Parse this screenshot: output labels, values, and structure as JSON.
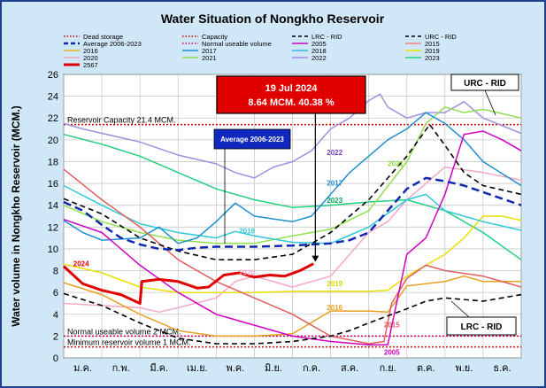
{
  "chart_data": {
    "type": "line",
    "title": "Water Situation of Nongkho Reservoir",
    "ylabel": "Water volume in Nongkho Reservoir (MCM.)",
    "xlabel": "",
    "ylim": [
      0,
      26
    ],
    "y_ticks": [
      0,
      2,
      4,
      6,
      8,
      10,
      12,
      14,
      16,
      18,
      20,
      22,
      24,
      26
    ],
    "categories": [
      "ม.ค.",
      "ก.พ.",
      "มี.ค.",
      "เม.ย.",
      "พ.ค.",
      "มิ.ย.",
      "ก.ค.",
      "ส.ค.",
      "ก.ย.",
      "ต.ค.",
      "พ.ย.",
      "ธ.ค."
    ],
    "grid": true,
    "legend_placement": "top",
    "reference_lines": [
      {
        "label": "Reservoir Capacity 21.4 MCM.",
        "value": 21.4,
        "color": "#c00000"
      },
      {
        "label": "Normal useable volume 2 MCM.",
        "value": 2,
        "color": "#c00060"
      },
      {
        "label": "Minimum reservoir volume 1 MCM.",
        "value": 1,
        "color": "#c00000"
      }
    ],
    "callout": {
      "line1": "19 Jul 2024",
      "line2": "8.64 MCM. 40.38 %",
      "month": 6.6,
      "value": 8.64
    },
    "avg_label": "Average 2006-2023",
    "urc_labels": [
      "URC - RID",
      "LRC - RID"
    ],
    "year_labels": [
      {
        "name": "2024",
        "m": 0.25,
        "v": 8.4,
        "color": "#e00000"
      },
      {
        "name": "2022",
        "m": 6.9,
        "v": 18.6,
        "color": "#7a3fbf"
      },
      {
        "name": "2021",
        "m": 8.5,
        "v": 17.6,
        "color": "#8fd640"
      },
      {
        "name": "2017",
        "m": 6.9,
        "v": 15.8,
        "color": "#1f8fd0"
      },
      {
        "name": "2023",
        "m": 6.9,
        "v": 14.2,
        "color": "#00a060"
      },
      {
        "name": "2018",
        "m": 4.6,
        "v": 11.4,
        "color": "#30c8d8"
      },
      {
        "name": "2020",
        "m": 4.6,
        "v": 7.6,
        "color": "#f4a8c8"
      },
      {
        "name": "2019",
        "m": 6.9,
        "v": 6.6,
        "color": "#d8d800"
      },
      {
        "name": "2016",
        "m": 6.9,
        "v": 4.4,
        "color": "#e8a020"
      },
      {
        "name": "2015",
        "m": 8.4,
        "v": 2.8,
        "color": "#e06060"
      },
      {
        "name": "2005",
        "m": 8.4,
        "v": 0.3,
        "color": "#d000c0"
      }
    ],
    "legend": [
      {
        "name": "Dead storage",
        "color": "#c00000",
        "style": "dot"
      },
      {
        "name": "Capacity",
        "color": "#c00000",
        "style": "dot"
      },
      {
        "name": "LRC - RID",
        "color": "#000000",
        "style": "dash"
      },
      {
        "name": "URC - RID",
        "color": "#000000",
        "style": "dash"
      },
      {
        "name": "Average 2006-2023",
        "color": "#1028b0",
        "style": "dashbold"
      },
      {
        "name": "Normal useable volume",
        "color": "#c00060",
        "style": "dot"
      },
      {
        "name": "2005",
        "color": "#d000c0",
        "style": "solid"
      },
      {
        "name": "2015",
        "color": "#f08080",
        "style": "solid"
      },
      {
        "name": "2016",
        "color": "#f0b020",
        "style": "solid"
      },
      {
        "name": "2017",
        "color": "#1f8fd0",
        "style": "solid"
      },
      {
        "name": "2018",
        "color": "#30b8d8",
        "style": "solid"
      },
      {
        "name": "2019",
        "color": "#e8e000",
        "style": "solid"
      },
      {
        "name": "2020",
        "color": "#f4a8c8",
        "style": "solid"
      },
      {
        "name": "2021",
        "color": "#90e050",
        "style": "solid"
      },
      {
        "name": "2022",
        "color": "#a090e0",
        "style": "solid"
      },
      {
        "name": "2023",
        "color": "#20d080",
        "style": "solid"
      },
      {
        "name": "2567",
        "color": "#e00000",
        "style": "solidbold"
      }
    ],
    "series": [
      {
        "name": "2567",
        "color": "#e00000",
        "width": 3,
        "points": [
          [
            0,
            8.4
          ],
          [
            0.5,
            6.8
          ],
          [
            1,
            6.2
          ],
          [
            1.5,
            5.8
          ],
          [
            2,
            5.0
          ],
          [
            2.05,
            7.0
          ],
          [
            2.5,
            7.2
          ],
          [
            3,
            7.0
          ],
          [
            3.5,
            6.4
          ],
          [
            3.8,
            6.5
          ],
          [
            4.2,
            7.6
          ],
          [
            4.6,
            7.8
          ],
          [
            5,
            7.4
          ],
          [
            5.4,
            7.6
          ],
          [
            5.8,
            7.5
          ],
          [
            6.2,
            8.0
          ],
          [
            6.55,
            8.64
          ]
        ]
      },
      {
        "name": "Average 2006-2023",
        "color": "#1028b0",
        "width": 2.5,
        "dash": "9,5",
        "points": [
          [
            0,
            14.3
          ],
          [
            0.5,
            13.5
          ],
          [
            1,
            12.2
          ],
          [
            1.5,
            11.0
          ],
          [
            2,
            10.4
          ],
          [
            2.5,
            10.0
          ],
          [
            3,
            9.9
          ],
          [
            3.5,
            10.1
          ],
          [
            4,
            10.2
          ],
          [
            5,
            10.2
          ],
          [
            6,
            10.3
          ],
          [
            7,
            10.5
          ],
          [
            7.5,
            10.8
          ],
          [
            8,
            11.5
          ],
          [
            8.5,
            13.5
          ],
          [
            9,
            15.5
          ],
          [
            9.5,
            16.5
          ],
          [
            10,
            16.2
          ],
          [
            10.5,
            15.8
          ],
          [
            11,
            15.2
          ],
          [
            11.5,
            14.6
          ],
          [
            12,
            14.0
          ]
        ]
      },
      {
        "name": "URC - RID",
        "color": "#000000",
        "width": 1.6,
        "dash": "6,4",
        "points": [
          [
            0,
            14.6
          ],
          [
            1,
            13.2
          ],
          [
            2,
            11.0
          ],
          [
            3,
            9.8
          ],
          [
            4,
            9.0
          ],
          [
            5,
            9.0
          ],
          [
            6,
            9.5
          ],
          [
            7,
            11.5
          ],
          [
            8,
            14.5
          ],
          [
            9,
            18.5
          ],
          [
            9.6,
            21.4
          ],
          [
            10,
            19.5
          ],
          [
            10.5,
            17.0
          ],
          [
            11,
            15.8
          ],
          [
            12,
            15.0
          ]
        ]
      },
      {
        "name": "LRC - RID",
        "color": "#000000",
        "width": 1.6,
        "dash": "6,4",
        "points": [
          [
            0,
            5.9
          ],
          [
            1,
            4.8
          ],
          [
            2,
            3.2
          ],
          [
            3,
            1.8
          ],
          [
            4,
            1.3
          ],
          [
            5,
            1.3
          ],
          [
            6,
            1.5
          ],
          [
            7,
            2.0
          ],
          [
            7.5,
            2.5
          ],
          [
            8,
            3.2
          ],
          [
            9,
            4.5
          ],
          [
            9.5,
            5.2
          ],
          [
            10,
            5.5
          ],
          [
            11,
            5.2
          ],
          [
            12,
            5.8
          ]
        ]
      },
      {
        "name": "2005",
        "color": "#d000c0",
        "width": 1.5,
        "points": [
          [
            0,
            12.7
          ],
          [
            1,
            11.5
          ],
          [
            2,
            8.5
          ],
          [
            3,
            6.0
          ],
          [
            4,
            4.0
          ],
          [
            5,
            3.0
          ],
          [
            6,
            2.0
          ],
          [
            7,
            1.5
          ],
          [
            8,
            1.2
          ],
          [
            8.5,
            1.2
          ],
          [
            8.7,
            4.5
          ],
          [
            9,
            9.5
          ],
          [
            9.5,
            11.0
          ],
          [
            10,
            15.0
          ],
          [
            10.5,
            20.5
          ],
          [
            11,
            20.8
          ],
          [
            11.5,
            20.0
          ],
          [
            12,
            19.0
          ]
        ]
      },
      {
        "name": "2015",
        "color": "#e06060",
        "width": 1.5,
        "points": [
          [
            0,
            17.3
          ],
          [
            1,
            14.5
          ],
          [
            2,
            12.0
          ],
          [
            3,
            9.0
          ],
          [
            4,
            7.0
          ],
          [
            5,
            5.5
          ],
          [
            6,
            4.0
          ],
          [
            7,
            2.0
          ],
          [
            8,
            1.3
          ],
          [
            8.4,
            1.5
          ],
          [
            8.6,
            5.0
          ],
          [
            9,
            7.3
          ],
          [
            9.5,
            8.5
          ],
          [
            10,
            8.0
          ],
          [
            11,
            7.5
          ],
          [
            12,
            6.5
          ]
        ]
      },
      {
        "name": "2016",
        "color": "#e8a020",
        "width": 1.5,
        "points": [
          [
            0,
            6.9
          ],
          [
            1,
            5.8
          ],
          [
            2,
            4.0
          ],
          [
            3,
            2.5
          ],
          [
            4,
            2.0
          ],
          [
            5,
            2.0
          ],
          [
            6,
            2.2
          ],
          [
            7,
            4.3
          ],
          [
            8,
            4.3
          ],
          [
            8.5,
            4.2
          ],
          [
            9,
            6.6
          ],
          [
            10,
            7.0
          ],
          [
            10.5,
            7.5
          ],
          [
            11,
            7.0
          ],
          [
            12,
            7.0
          ]
        ]
      },
      {
        "name": "2017",
        "color": "#1f8fd0",
        "width": 1.5,
        "points": [
          [
            0,
            12.6
          ],
          [
            0.5,
            11.5
          ],
          [
            1,
            10.8
          ],
          [
            2,
            11.0
          ],
          [
            2.5,
            12.0
          ],
          [
            3,
            10.5
          ],
          [
            3.5,
            11.0
          ],
          [
            4,
            12.5
          ],
          [
            4.5,
            14.2
          ],
          [
            5,
            13.0
          ],
          [
            6,
            12.5
          ],
          [
            6.5,
            13.0
          ],
          [
            7,
            15.0
          ],
          [
            7.5,
            17.0
          ],
          [
            8,
            18.5
          ],
          [
            8.5,
            20.0
          ],
          [
            9,
            21.0
          ],
          [
            9.5,
            22.5
          ],
          [
            10,
            21.5
          ],
          [
            10.5,
            20.0
          ],
          [
            11,
            18.0
          ],
          [
            12,
            15.8
          ]
        ]
      },
      {
        "name": "2018",
        "color": "#30c8d8",
        "width": 1.5,
        "points": [
          [
            0,
            15.8
          ],
          [
            1,
            14.0
          ],
          [
            2,
            12.3
          ],
          [
            3,
            11.5
          ],
          [
            4,
            11.0
          ],
          [
            4.5,
            11.6
          ],
          [
            5,
            11.2
          ],
          [
            6,
            10.6
          ],
          [
            7,
            10.5
          ],
          [
            8,
            12.0
          ],
          [
            9,
            14.5
          ],
          [
            9.5,
            15.0
          ],
          [
            10,
            13.5
          ],
          [
            11,
            12.5
          ],
          [
            12,
            11.7
          ]
        ]
      },
      {
        "name": "2019",
        "color": "#e8e000",
        "width": 1.5,
        "points": [
          [
            0,
            8.6
          ],
          [
            1,
            7.8
          ],
          [
            2,
            6.5
          ],
          [
            3,
            6.0
          ],
          [
            4,
            6.0
          ],
          [
            5,
            6.0
          ],
          [
            6,
            6.1
          ],
          [
            7,
            6.1
          ],
          [
            8,
            6.1
          ],
          [
            8.5,
            6.2
          ],
          [
            9,
            7.5
          ],
          [
            9.5,
            8.5
          ],
          [
            10,
            9.5
          ],
          [
            10.5,
            11.0
          ],
          [
            11,
            13.0
          ],
          [
            11.5,
            13.0
          ],
          [
            12,
            12.6
          ]
        ]
      },
      {
        "name": "2020",
        "color": "#f4a8c8",
        "width": 1.5,
        "points": [
          [
            0,
            5.0
          ],
          [
            1,
            4.8
          ],
          [
            2,
            4.6
          ],
          [
            2.5,
            4.2
          ],
          [
            3,
            4.6
          ],
          [
            4,
            5.5
          ],
          [
            4.5,
            7.0
          ],
          [
            5,
            7.5
          ],
          [
            6,
            6.5
          ],
          [
            7,
            7.5
          ],
          [
            8,
            11.5
          ],
          [
            8.5,
            12.5
          ],
          [
            9,
            14.5
          ],
          [
            10,
            17.5
          ],
          [
            11,
            17.0
          ],
          [
            12,
            16.3
          ]
        ]
      },
      {
        "name": "2021",
        "color": "#90e050",
        "width": 1.5,
        "points": [
          [
            0,
            14.0
          ],
          [
            1,
            12.5
          ],
          [
            2,
            11.5
          ],
          [
            3,
            10.8
          ],
          [
            4,
            10.5
          ],
          [
            5,
            10.5
          ],
          [
            6,
            11.2
          ],
          [
            7,
            11.8
          ],
          [
            8,
            13.5
          ],
          [
            9,
            18.0
          ],
          [
            9.5,
            21.5
          ],
          [
            10,
            23.0
          ],
          [
            10.5,
            22.5
          ],
          [
            11,
            22.8
          ],
          [
            12,
            22.0
          ]
        ]
      },
      {
        "name": "2022",
        "color": "#a090e0",
        "width": 1.5,
        "points": [
          [
            0,
            21.5
          ],
          [
            0.5,
            21.0
          ],
          [
            1,
            20.6
          ],
          [
            2,
            19.8
          ],
          [
            3,
            18.6
          ],
          [
            4,
            17.8
          ],
          [
            4.5,
            17.0
          ],
          [
            5,
            16.5
          ],
          [
            5.5,
            17.5
          ],
          [
            6,
            18.0
          ],
          [
            6.5,
            19.0
          ],
          [
            7,
            21.0
          ],
          [
            7.5,
            22.0
          ],
          [
            8,
            23.6
          ],
          [
            8.3,
            24.2
          ],
          [
            8.5,
            23.0
          ],
          [
            9,
            22.0
          ],
          [
            9.5,
            22.5
          ],
          [
            10,
            22.5
          ],
          [
            10.5,
            23.5
          ],
          [
            11,
            22.0
          ],
          [
            12,
            20.6
          ]
        ]
      },
      {
        "name": "2023",
        "color": "#20d080",
        "width": 1.5,
        "points": [
          [
            0,
            20.5
          ],
          [
            1,
            19.6
          ],
          [
            2,
            18.5
          ],
          [
            3,
            17.0
          ],
          [
            4,
            15.5
          ],
          [
            5,
            14.5
          ],
          [
            6,
            13.8
          ],
          [
            7,
            14.0
          ],
          [
            8,
            14.3
          ],
          [
            9,
            14.5
          ],
          [
            10,
            13.5
          ],
          [
            11,
            11.5
          ],
          [
            12,
            9.0
          ]
        ]
      }
    ]
  }
}
